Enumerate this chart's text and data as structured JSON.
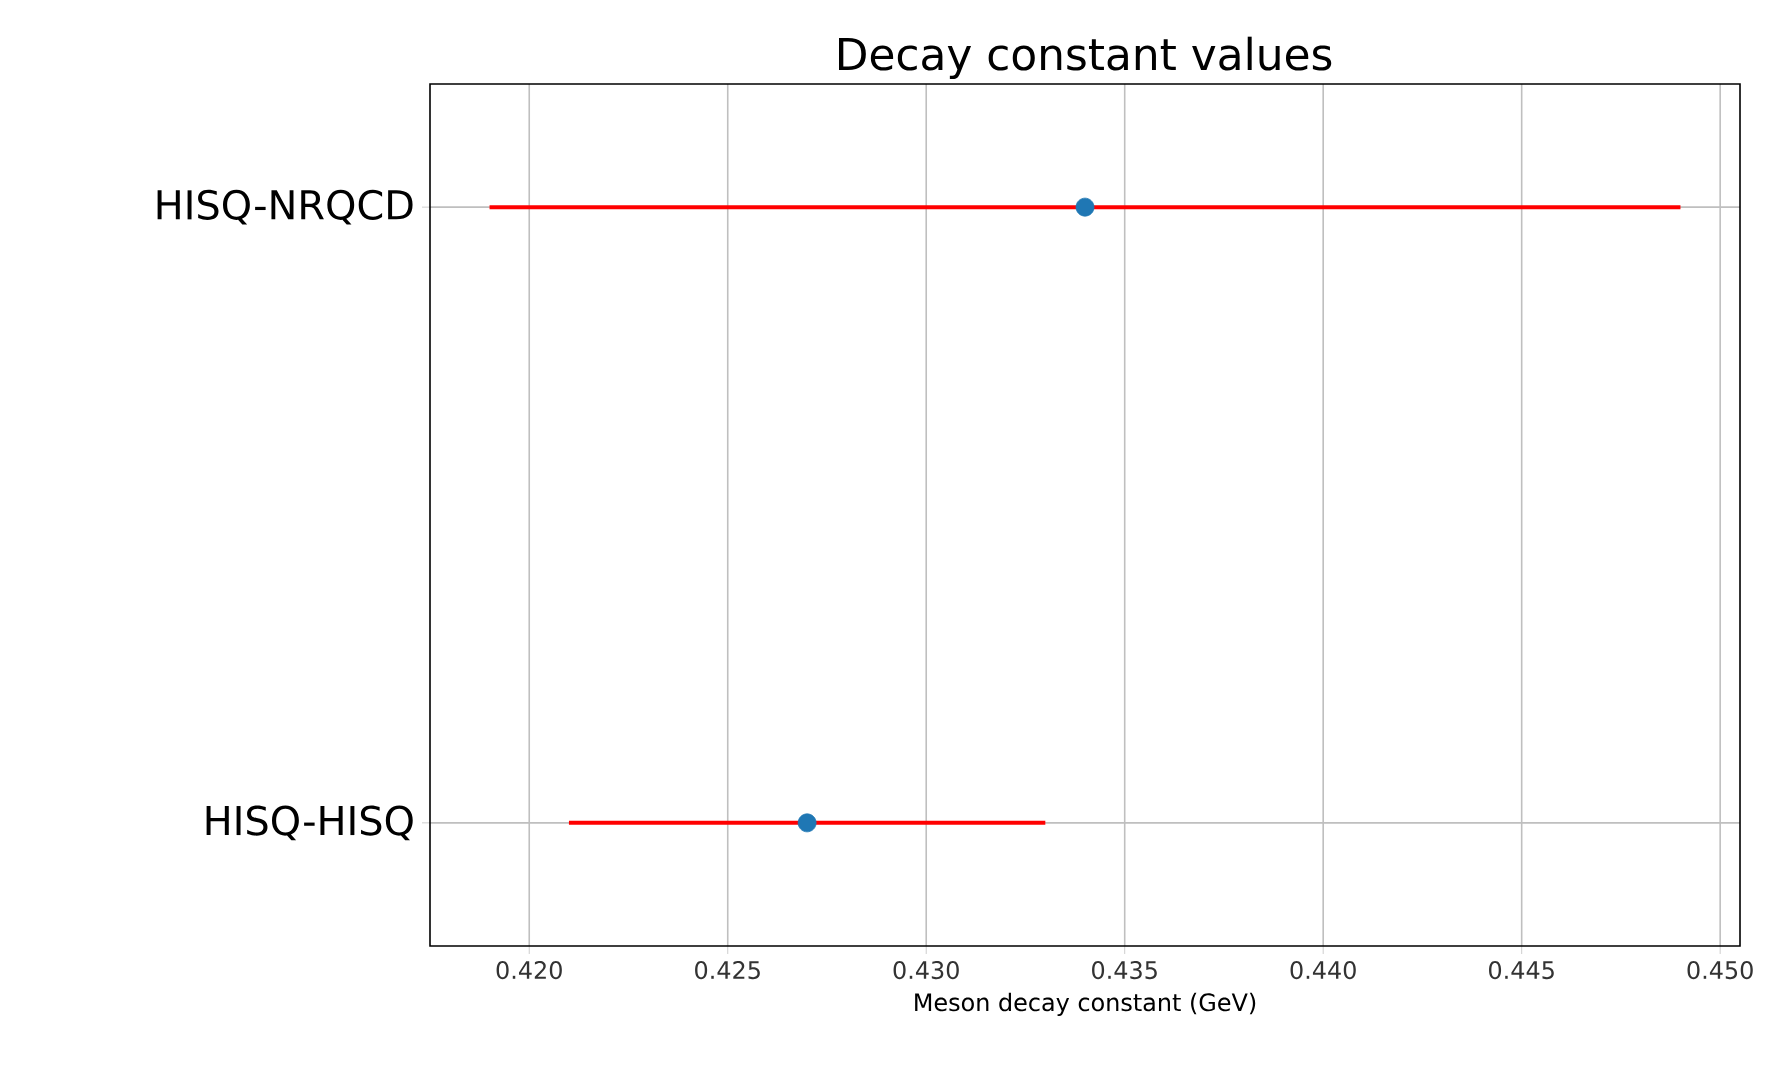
{
  "chart_data": {
    "type": "scatter",
    "title": "Decay constant values",
    "xlabel": "Meson decay constant (GeV)",
    "orientation": "horizontal",
    "categories": [
      "HISQ-NRQCD",
      "HISQ-HISQ"
    ],
    "series": [
      {
        "color": "#1f77b4",
        "values": [
          0.434,
          0.427
        ],
        "errors": [
          0.015,
          0.006
        ]
      }
    ],
    "xlim": [
      0.4175,
      0.4505
    ],
    "xticks": [
      {
        "value": 0.42,
        "label": "0.420"
      },
      {
        "value": 0.425,
        "label": "0.425"
      },
      {
        "value": 0.43,
        "label": "0.430"
      },
      {
        "value": 0.435,
        "label": "0.435"
      },
      {
        "value": 0.44,
        "label": "0.440"
      },
      {
        "value": 0.445,
        "label": "0.445"
      },
      {
        "value": 0.45,
        "label": "0.450"
      }
    ],
    "grid": true
  }
}
